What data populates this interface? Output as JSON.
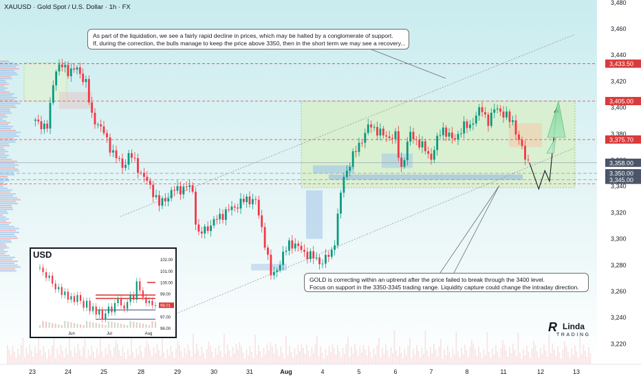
{
  "header": {
    "title": "XAUUSD · Gold Spot / U.S. Dollar · 1h · FX"
  },
  "annotations": {
    "top_line1": "As part of the liquidation, we see a fairly rapid decline in prices, which may be halted by a conglomerate of support.",
    "top_line2": "If, during the correction, the bulls manage to keep the price above 3350, then in the short term we may see a recovery...",
    "bottom_line1": "GOLD is correcting within an uptrend after the price failed to break through the 3400 level.",
    "bottom_line2": "Focus on support in the 3350-3345 trading range. Liquidity capture could change the intraday direction."
  },
  "logo": {
    "part1": "R",
    "part2": "Linda",
    "part3": "TRADING"
  },
  "colors": {
    "up": "#089981",
    "down": "#f23645",
    "level": "#e0524f",
    "level_box": "#d93a3a",
    "eql_box": "#4a5568",
    "channel": "#9aa0a6",
    "range_fill": "#d8efc6",
    "range_border": "#7cb342",
    "arrow": "#7fd99a"
  },
  "chart_data": [
    {
      "type": "candlestick",
      "title": "XAUUSD · Gold Spot / U.S. Dollar · 1h · FX",
      "ylim": [
        3212,
        3484
      ],
      "y_ticks": [
        3220,
        3240,
        3260,
        3280,
        3300,
        3320,
        3340,
        3360,
        3380,
        3400,
        3420,
        3440,
        3460,
        3480
      ],
      "x_ticks": [
        "23",
        "24",
        "25",
        "28",
        "29",
        "30",
        "31",
        "Aug",
        "4",
        "5",
        "6",
        "7",
        "8",
        "11",
        "12",
        "13"
      ],
      "path": [
        {
          "s": 0,
          "p": 3390
        },
        {
          "s": 0.45,
          "p": 3385
        },
        {
          "s": 0.55,
          "p": 3415
        },
        {
          "s": 0.7,
          "p": 3433
        },
        {
          "s": 1.0,
          "p": 3428
        },
        {
          "s": 1.2,
          "p": 3430
        },
        {
          "s": 1.5,
          "p": 3420
        },
        {
          "s": 1.65,
          "p": 3393
        },
        {
          "s": 1.9,
          "p": 3386
        },
        {
          "s": 2.2,
          "p": 3368
        },
        {
          "s": 2.5,
          "p": 3355
        },
        {
          "s": 2.7,
          "p": 3365
        },
        {
          "s": 3.0,
          "p": 3350
        },
        {
          "s": 3.3,
          "p": 3338
        },
        {
          "s": 3.5,
          "p": 3326
        },
        {
          "s": 3.9,
          "p": 3337
        },
        {
          "s": 4.4,
          "p": 3340
        },
        {
          "s": 4.55,
          "p": 3302
        },
        {
          "s": 5.2,
          "p": 3318
        },
        {
          "s": 5.6,
          "p": 3325
        },
        {
          "s": 5.9,
          "p": 3330
        },
        {
          "s": 6.15,
          "p": 3330
        },
        {
          "s": 6.4,
          "p": 3300
        },
        {
          "s": 6.6,
          "p": 3270
        },
        {
          "s": 6.85,
          "p": 3283
        },
        {
          "s": 7.1,
          "p": 3298
        },
        {
          "s": 7.4,
          "p": 3292
        },
        {
          "s": 7.6,
          "p": 3288
        },
        {
          "s": 8.0,
          "p": 3282
        },
        {
          "s": 8.3,
          "p": 3292
        },
        {
          "s": 8.55,
          "p": 3345
        },
        {
          "s": 8.8,
          "p": 3361
        },
        {
          "s": 9.0,
          "p": 3372
        },
        {
          "s": 9.3,
          "p": 3387
        },
        {
          "s": 9.7,
          "p": 3378
        },
        {
          "s": 10.0,
          "p": 3378
        },
        {
          "s": 10.15,
          "p": 3352
        },
        {
          "s": 10.4,
          "p": 3380
        },
        {
          "s": 10.7,
          "p": 3372
        },
        {
          "s": 11.0,
          "p": 3362
        },
        {
          "s": 11.3,
          "p": 3385
        },
        {
          "s": 11.6,
          "p": 3375
        },
        {
          "s": 11.9,
          "p": 3385
        },
        {
          "s": 12.1,
          "p": 3387
        },
        {
          "s": 12.4,
          "p": 3400
        },
        {
          "s": 12.6,
          "p": 3388
        },
        {
          "s": 12.8,
          "p": 3402
        },
        {
          "s": 13.0,
          "p": 3394
        },
        {
          "s": 13.25,
          "p": 3390
        },
        {
          "s": 13.4,
          "p": 3375
        },
        {
          "s": 13.6,
          "p": 3362
        },
        {
          "s": 13.7,
          "p": 3358
        }
      ],
      "candles_per_session": 12,
      "levels": [
        {
          "label": "poi",
          "value": 3433.5,
          "tag": "3,433.50",
          "style": "dashed"
        },
        {
          "label": "poi",
          "value": 3405.0,
          "tag": "3,405.00",
          "style": "dashed"
        },
        {
          "label": "",
          "value": 3375.7,
          "tag": "3,375.70",
          "style": "dashed"
        },
        {
          "label": "",
          "value": 3358.0,
          "tag": "3,358.00",
          "style": "thin"
        },
        {
          "label": "eql",
          "value": 3350.0,
          "tag": "3,350.00",
          "style": "thin"
        },
        {
          "label": "eql",
          "value": 3345.0,
          "tag": "3,345.00",
          "style": "thin"
        }
      ],
      "projection": [
        [
          13.7,
          3358
        ],
        [
          13.85,
          3346
        ],
        [
          13.95,
          3338
        ],
        [
          14.12,
          3352
        ],
        [
          14.25,
          3344
        ],
        [
          14.45,
          3400
        ]
      ]
    },
    {
      "type": "line",
      "title": "USD",
      "ylim": [
        95.8,
        102.4
      ],
      "y_ticks": [
        "102.00",
        "101.00",
        "100.00",
        "99.00",
        "98.00",
        "97.00",
        "96.00"
      ],
      "x_ticks": [
        "Jun",
        "Jul",
        "Aug"
      ],
      "last_value": "98.01",
      "values": [
        101.3,
        100.9,
        100.4,
        100.6,
        99.9,
        99.4,
        99.6,
        98.9,
        99.2,
        98.5,
        98.8,
        98.3,
        98.9,
        98.4,
        97.8,
        98.4,
        97.5,
        97.9,
        97.2,
        97.6,
        96.8,
        97.3,
        97.9,
        97.4,
        98.2,
        98.6,
        98.0,
        97.7,
        98.3,
        98.9,
        98.5,
        100.1,
        99.3,
        98.7,
        98.2,
        98.4,
        98.0,
        98.01
      ],
      "levels": [
        100.0,
        98.9,
        98.6,
        97.6,
        96.8
      ]
    }
  ]
}
